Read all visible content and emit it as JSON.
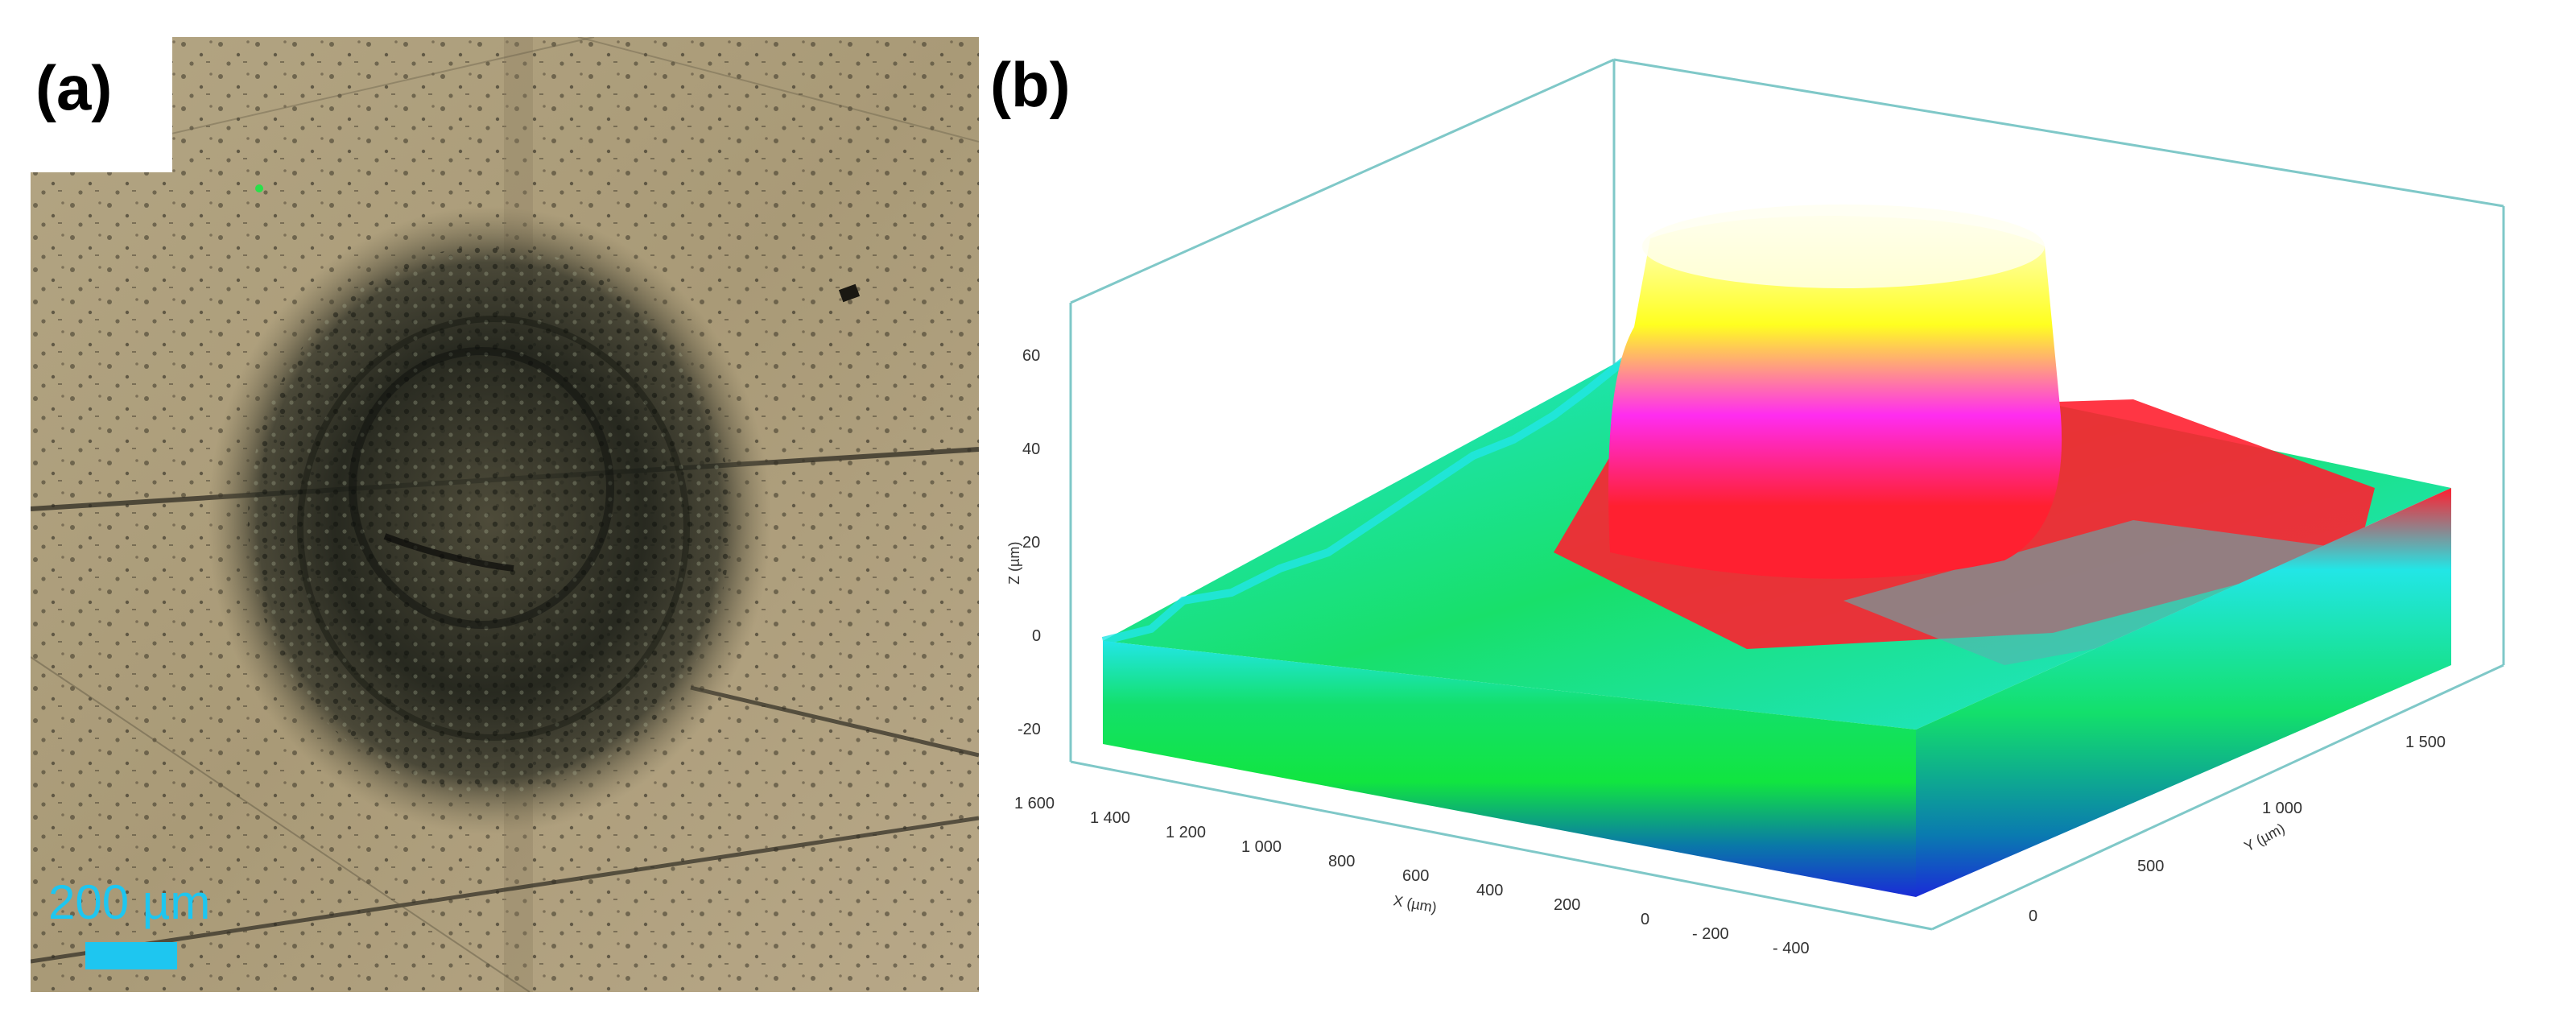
{
  "panel_a": {
    "label": "(a)",
    "scale_bar_text": "200 µm",
    "scale_bar_color": "#1ec6f0"
  },
  "panel_b": {
    "label": "(b)",
    "z_axis": {
      "label": "Z (µm)",
      "ticks": [
        "60",
        "40",
        "20",
        "0",
        "-20"
      ]
    },
    "x_axis": {
      "label": "X (µm)",
      "ticks": [
        "1 600",
        "1 400",
        "1 200",
        "1 000",
        "800",
        "600",
        "400",
        "200",
        "0",
        "- 200",
        "- 400"
      ]
    },
    "y_axis": {
      "label": "Y (µm)",
      "ticks": [
        "0",
        "500",
        "1 000",
        "1 500"
      ]
    },
    "colors": {
      "box_edges": "#7fc8c8",
      "base": "#1a2bd8",
      "mid": "#13e06b",
      "cyan": "#22e6e6",
      "red": "#ff2030",
      "magenta": "#ff2cf0",
      "yellow": "#ffff20",
      "top": "#ffffd0"
    }
  }
}
